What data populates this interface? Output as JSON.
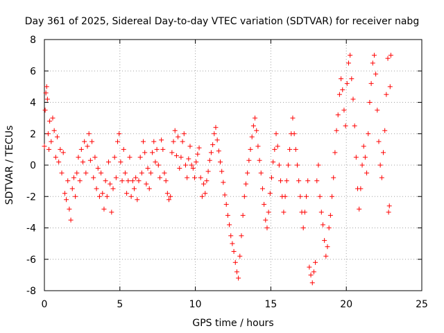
{
  "chart_data": {
    "type": "scatter",
    "title": "Day 361 of 2025, Sidereal Day-to-day VTEC variation (SDTVAR) for receiver nabg",
    "xlabel": "GPS time / hours",
    "ylabel": "SDTVAR / TECUs",
    "xlim": [
      0,
      25
    ],
    "ylim": [
      -8,
      8
    ],
    "xticks": [
      0,
      5,
      10,
      15,
      20,
      25
    ],
    "yticks": [
      -8,
      -6,
      -4,
      -2,
      0,
      2,
      4,
      6,
      8
    ],
    "xtick_labels": [
      "0",
      "5",
      "10",
      "15",
      "20",
      "25"
    ],
    "ytick_labels": [
      "-8",
      "-6",
      "-4",
      "-2",
      "0",
      "2",
      "4",
      "6",
      "8"
    ],
    "grid": true,
    "marker": "+",
    "color": "#ff0000",
    "series": [
      {
        "name": "SDTVAR",
        "points": [
          [
            0.0,
            1.2
          ],
          [
            0.05,
            3.5
          ],
          [
            0.1,
            4.6
          ],
          [
            0.15,
            5.0
          ],
          [
            0.2,
            4.2
          ],
          [
            0.25,
            2.0
          ],
          [
            0.3,
            1.0
          ],
          [
            0.35,
            2.8
          ],
          [
            0.45,
            1.5
          ],
          [
            0.55,
            3.0
          ],
          [
            0.65,
            2.2
          ],
          [
            0.75,
            0.5
          ],
          [
            0.85,
            1.8
          ],
          [
            0.95,
            0.2
          ],
          [
            1.05,
            1.0
          ],
          [
            1.15,
            -0.5
          ],
          [
            1.25,
            0.8
          ],
          [
            1.35,
            -1.8
          ],
          [
            1.45,
            -2.2
          ],
          [
            1.55,
            -1.0
          ],
          [
            1.65,
            -2.8
          ],
          [
            1.75,
            -3.5
          ],
          [
            1.85,
            -1.5
          ],
          [
            1.95,
            -0.8
          ],
          [
            2.05,
            -2.0
          ],
          [
            2.15,
            -0.5
          ],
          [
            2.25,
            0.5
          ],
          [
            2.35,
            -1.0
          ],
          [
            2.45,
            1.0
          ],
          [
            2.55,
            0.2
          ],
          [
            2.65,
            1.5
          ],
          [
            2.75,
            -0.5
          ],
          [
            2.85,
            1.2
          ],
          [
            2.95,
            2.0
          ],
          [
            3.05,
            0.3
          ],
          [
            3.15,
            1.5
          ],
          [
            3.25,
            -0.8
          ],
          [
            3.35,
            0.5
          ],
          [
            3.45,
            -1.5
          ],
          [
            3.55,
            -0.2
          ],
          [
            3.65,
            -2.0
          ],
          [
            3.75,
            -0.5
          ],
          [
            3.85,
            -1.8
          ],
          [
            3.95,
            -2.8
          ],
          [
            4.05,
            -1.0
          ],
          [
            4.15,
            -2.0
          ],
          [
            4.25,
            0.2
          ],
          [
            4.35,
            -1.2
          ],
          [
            4.45,
            -3.0
          ],
          [
            4.55,
            -1.5
          ],
          [
            4.65,
            0.5
          ],
          [
            4.75,
            -0.8
          ],
          [
            4.85,
            1.5
          ],
          [
            4.95,
            2.0
          ],
          [
            5.05,
            0.2
          ],
          [
            5.15,
            -1.0
          ],
          [
            5.25,
            1.0
          ],
          [
            5.35,
            -0.5
          ],
          [
            5.45,
            -1.8
          ],
          [
            5.55,
            -1.0
          ],
          [
            5.65,
            0.5
          ],
          [
            5.75,
            -2.0
          ],
          [
            5.85,
            -1.0
          ],
          [
            5.95,
            -1.5
          ],
          [
            6.05,
            -0.8
          ],
          [
            6.15,
            -2.2
          ],
          [
            6.25,
            -1.0
          ],
          [
            6.35,
            0.5
          ],
          [
            6.45,
            -0.5
          ],
          [
            6.55,
            1.5
          ],
          [
            6.65,
            0.8
          ],
          [
            6.75,
            -1.2
          ],
          [
            6.85,
            -0.2
          ],
          [
            6.95,
            -1.5
          ],
          [
            7.05,
            -0.5
          ],
          [
            7.15,
            0.8
          ],
          [
            7.25,
            1.5
          ],
          [
            7.35,
            0.2
          ],
          [
            7.45,
            1.0
          ],
          [
            7.55,
            0.0
          ],
          [
            7.65,
            -0.8
          ],
          [
            7.75,
            1.6
          ],
          [
            7.85,
            1.0
          ],
          [
            7.95,
            -0.5
          ],
          [
            8.05,
            -1.0
          ],
          [
            8.15,
            -1.8
          ],
          [
            8.25,
            -2.2
          ],
          [
            8.35,
            -2.0
          ],
          [
            8.45,
            0.8
          ],
          [
            8.55,
            1.5
          ],
          [
            8.65,
            2.2
          ],
          [
            8.75,
            0.6
          ],
          [
            8.85,
            1.8
          ],
          [
            8.95,
            -0.2
          ],
          [
            9.05,
            0.5
          ],
          [
            9.15,
            1.5
          ],
          [
            9.25,
            2.0
          ],
          [
            9.35,
            0.0
          ],
          [
            9.45,
            -0.8
          ],
          [
            9.55,
            0.4
          ],
          [
            9.65,
            1.2
          ],
          [
            9.75,
            0.0
          ],
          [
            9.85,
            -0.2
          ],
          [
            9.95,
            -0.8
          ],
          [
            10.05,
            0.2
          ],
          [
            10.15,
            0.7
          ],
          [
            10.25,
            1.1
          ],
          [
            10.35,
            -0.8
          ],
          [
            10.45,
            -2.0
          ],
          [
            10.55,
            -1.2
          ],
          [
            10.65,
            -1.8
          ],
          [
            10.75,
            -1.0
          ],
          [
            10.85,
            -0.4
          ],
          [
            10.95,
            0.3
          ],
          [
            11.05,
            0.8
          ],
          [
            11.15,
            1.3
          ],
          [
            11.25,
            2.0
          ],
          [
            11.35,
            2.4
          ],
          [
            11.45,
            1.6
          ],
          [
            11.55,
            0.9
          ],
          [
            11.65,
            0.2
          ],
          [
            11.75,
            -0.4
          ],
          [
            11.85,
            -1.1
          ],
          [
            11.95,
            -1.9
          ],
          [
            12.05,
            -2.5
          ],
          [
            12.15,
            -3.2
          ],
          [
            12.25,
            -3.8
          ],
          [
            12.35,
            -4.5
          ],
          [
            12.45,
            -5.0
          ],
          [
            12.55,
            -5.5
          ],
          [
            12.65,
            -6.2
          ],
          [
            12.75,
            -6.8
          ],
          [
            12.85,
            -7.2
          ],
          [
            12.95,
            -5.8
          ],
          [
            13.05,
            -4.5
          ],
          [
            13.15,
            -3.2
          ],
          [
            13.25,
            -2.0
          ],
          [
            13.35,
            -1.2
          ],
          [
            13.45,
            -0.5
          ],
          [
            13.55,
            0.3
          ],
          [
            13.65,
            1.0
          ],
          [
            13.75,
            1.8
          ],
          [
            13.85,
            2.5
          ],
          [
            13.95,
            3.0
          ],
          [
            14.05,
            2.2
          ],
          [
            14.15,
            1.2
          ],
          [
            14.25,
            0.3
          ],
          [
            14.35,
            -0.5
          ],
          [
            14.45,
            -1.5
          ],
          [
            14.55,
            -2.5
          ],
          [
            14.65,
            -3.5
          ],
          [
            14.75,
            -4.0
          ],
          [
            14.85,
            -3.0
          ],
          [
            14.95,
            -1.8
          ],
          [
            15.05,
            -0.8
          ],
          [
            15.15,
            0.2
          ],
          [
            15.25,
            1.0
          ],
          [
            15.35,
            2.0
          ],
          [
            15.45,
            1.2
          ],
          [
            15.55,
            0.0
          ],
          [
            15.65,
            -1.0
          ],
          [
            15.75,
            -2.0
          ],
          [
            15.85,
            -3.0
          ],
          [
            15.95,
            -2.0
          ],
          [
            16.05,
            -1.0
          ],
          [
            16.15,
            0.0
          ],
          [
            16.25,
            1.0
          ],
          [
            16.35,
            2.0
          ],
          [
            16.45,
            3.0
          ],
          [
            16.55,
            2.0
          ],
          [
            16.65,
            1.0
          ],
          [
            16.75,
            0.0
          ],
          [
            16.85,
            -1.0
          ],
          [
            16.95,
            -2.0
          ],
          [
            17.05,
            -3.0
          ],
          [
            17.15,
            -4.0
          ],
          [
            17.25,
            -3.0
          ],
          [
            17.35,
            -2.0
          ],
          [
            17.45,
            -1.0
          ],
          [
            17.55,
            -6.5
          ],
          [
            17.65,
            -7.0
          ],
          [
            17.75,
            -7.5
          ],
          [
            17.85,
            -6.8
          ],
          [
            17.95,
            -6.2
          ],
          [
            18.05,
            -1.0
          ],
          [
            18.15,
            0.0
          ],
          [
            18.25,
            -2.0
          ],
          [
            18.35,
            -3.0
          ],
          [
            18.45,
            -3.8
          ],
          [
            18.55,
            -4.8
          ],
          [
            18.65,
            -5.8
          ],
          [
            18.75,
            -5.2
          ],
          [
            18.85,
            -4.0
          ],
          [
            18.95,
            -3.2
          ],
          [
            19.05,
            -2.0
          ],
          [
            19.15,
            -0.8
          ],
          [
            19.25,
            0.8
          ],
          [
            19.35,
            2.2
          ],
          [
            19.45,
            3.2
          ],
          [
            19.55,
            4.5
          ],
          [
            19.65,
            5.5
          ],
          [
            19.75,
            4.8
          ],
          [
            19.85,
            3.5
          ],
          [
            19.95,
            2.5
          ],
          [
            20.05,
            5.2
          ],
          [
            20.15,
            6.5
          ],
          [
            20.25,
            7.0
          ],
          [
            20.35,
            5.5
          ],
          [
            20.45,
            4.2
          ],
          [
            20.55,
            2.5
          ],
          [
            20.65,
            0.5
          ],
          [
            20.75,
            -1.5
          ],
          [
            20.85,
            -2.8
          ],
          [
            20.95,
            -1.5
          ],
          [
            21.05,
            0.0
          ],
          [
            21.15,
            1.2
          ],
          [
            21.25,
            0.5
          ],
          [
            21.35,
            -0.5
          ],
          [
            21.45,
            2.0
          ],
          [
            21.55,
            4.0
          ],
          [
            21.65,
            5.2
          ],
          [
            21.75,
            6.5
          ],
          [
            21.85,
            7.0
          ],
          [
            21.95,
            5.8
          ],
          [
            22.05,
            3.5
          ],
          [
            22.15,
            1.5
          ],
          [
            22.25,
            0.0
          ],
          [
            22.35,
            -0.8
          ],
          [
            22.45,
            0.8
          ],
          [
            22.55,
            2.2
          ],
          [
            22.65,
            4.5
          ],
          [
            22.75,
            6.8
          ],
          [
            22.8,
            -3.0
          ],
          [
            22.85,
            -2.6
          ],
          [
            22.9,
            5.0
          ],
          [
            22.95,
            7.0
          ]
        ]
      }
    ]
  }
}
